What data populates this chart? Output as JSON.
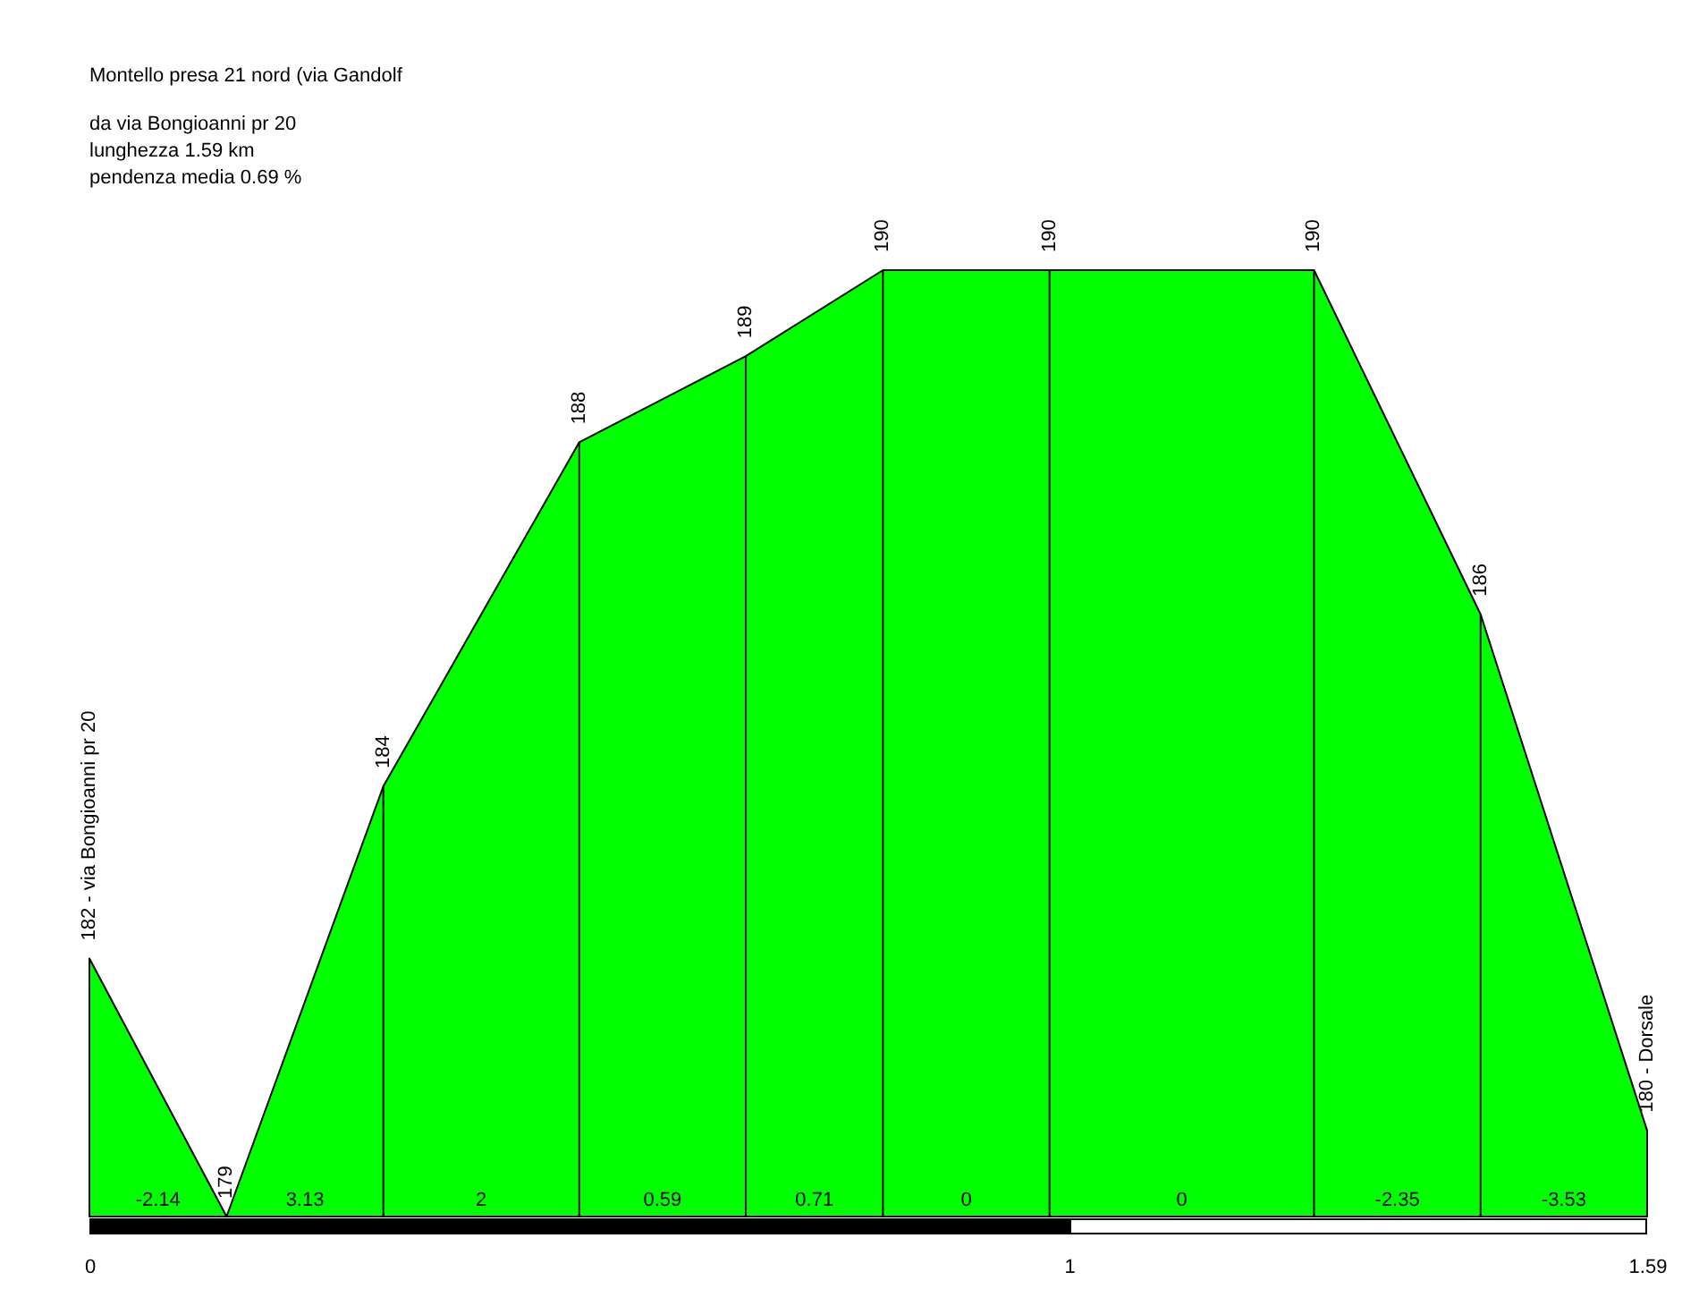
{
  "chart_data": {
    "type": "area",
    "title": "Montello presa 21 nord (via Gandolf",
    "subtitle": "da via Bongioanni pr 20\nlunghezza 1.59 km\npendenza media 0.69 %",
    "x": [
      0,
      0.14,
      0.3,
      0.5,
      0.67,
      0.81,
      0.98,
      1.25,
      1.42,
      1.59
    ],
    "series": [
      {
        "color": "#00ff00",
        "values": [
          182,
          179,
          184,
          188,
          189,
          190,
          190,
          190,
          186,
          180
        ],
        "value_labels": [
          "182 - via Bongioanni pr 20",
          "179",
          "184",
          "188",
          "189",
          "190",
          "190",
          "190",
          "186",
          "180 - Dorsale"
        ]
      }
    ],
    "xlim": [
      0,
      1.59
    ],
    "xticks": [
      0,
      1,
      1.59
    ],
    "tick_labels": "x",
    "grid": false,
    "annotations": [
      "-2.14",
      "3.13",
      "2",
      "0.59",
      "0.71",
      "0",
      "0",
      "-2.35",
      "-3.53"
    ]
  }
}
